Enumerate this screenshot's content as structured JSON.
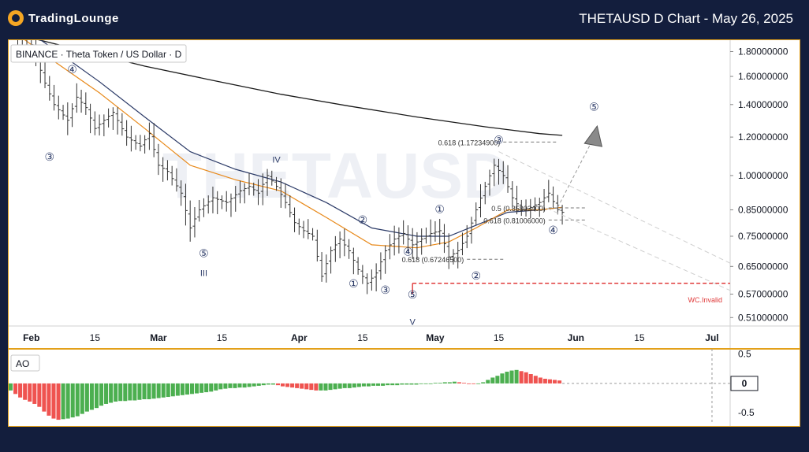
{
  "header": {
    "logo_text": "TradingLounge",
    "title": "THETAUSD D Chart - May 26, 2025"
  },
  "symbol_label": "BINANCE · Theta Token / US Dollar · D",
  "watermark": "THETAUSD",
  "indicator_label": "AO",
  "colors": {
    "background": "#131e3d",
    "frame": "#e3a019",
    "ema_fast": "#e8891a",
    "ema_mid": "#2b3a67",
    "ma_long": "#1a1a1a",
    "invalid": "#e03a3a",
    "ao_up": "#4caf50",
    "ao_down": "#ef5350"
  },
  "chart_data": {
    "type": "ohlc",
    "title": "THETAUSD D Chart - May 26, 2025",
    "y_axis_labels": [
      "1.80000000",
      "1.60000000",
      "1.40000000",
      "1.20000000",
      "1.00000000",
      "0.85000000",
      "0.75000000",
      "0.65000000",
      "0.57000000",
      "0.51000000"
    ],
    "y_axis_values": [
      1.8,
      1.6,
      1.4,
      1.2,
      1.0,
      0.85,
      0.75,
      0.65,
      0.57,
      0.51
    ],
    "scale": "log",
    "ylim": [
      0.49,
      1.9
    ],
    "x_axis_labels": [
      "Feb",
      "15",
      "Mar",
      "15",
      "Apr",
      "15",
      "May",
      "15",
      "Jun",
      "15",
      "Jul"
    ],
    "x_axis_days": [
      0,
      14,
      28,
      42,
      59,
      73,
      89,
      103,
      120,
      134,
      150
    ],
    "xlim": [
      -5,
      154
    ],
    "price_path": [
      [
        -3,
        1.85
      ],
      [
        0,
        1.86
      ],
      [
        3,
        1.55
      ],
      [
        5,
        1.4
      ],
      [
        8,
        1.3
      ],
      [
        10,
        1.45
      ],
      [
        12,
        1.38
      ],
      [
        14,
        1.25
      ],
      [
        16,
        1.3
      ],
      [
        18,
        1.35
      ],
      [
        21,
        1.2
      ],
      [
        24,
        1.15
      ],
      [
        26,
        1.22
      ],
      [
        28,
        1.05
      ],
      [
        30,
        1.02
      ],
      [
        33,
        0.92
      ],
      [
        35,
        0.78
      ],
      [
        37,
        0.85
      ],
      [
        40,
        0.9
      ],
      [
        43,
        0.88
      ],
      [
        46,
        0.93
      ],
      [
        48,
        0.95
      ],
      [
        50,
        0.92
      ],
      [
        52,
        1.0
      ],
      [
        54,
        0.95
      ],
      [
        56,
        0.88
      ],
      [
        58,
        0.8
      ],
      [
        60,
        0.77
      ],
      [
        62,
        0.75
      ],
      [
        64,
        0.62
      ],
      [
        66,
        0.7
      ],
      [
        68,
        0.74
      ],
      [
        70,
        0.7
      ],
      [
        72,
        0.64
      ],
      [
        74,
        0.6
      ],
      [
        76,
        0.63
      ],
      [
        78,
        0.7
      ],
      [
        80,
        0.74
      ],
      [
        82,
        0.76
      ],
      [
        84,
        0.72
      ],
      [
        86,
        0.74
      ],
      [
        88,
        0.76
      ],
      [
        90,
        0.77
      ],
      [
        92,
        0.68
      ],
      [
        94,
        0.7
      ],
      [
        96,
        0.75
      ],
      [
        98,
        0.85
      ],
      [
        100,
        0.95
      ],
      [
        102,
        1.05
      ],
      [
        104,
        1.0
      ],
      [
        106,
        0.9
      ],
      [
        108,
        0.85
      ],
      [
        110,
        0.86
      ],
      [
        112,
        0.88
      ],
      [
        114,
        0.92
      ],
      [
        116,
        0.85
      ],
      [
        117,
        0.84
      ]
    ],
    "ema_fast": [
      [
        -3,
        1.95
      ],
      [
        5,
        1.72
      ],
      [
        15,
        1.48
      ],
      [
        25,
        1.25
      ],
      [
        35,
        1.05
      ],
      [
        45,
        0.98
      ],
      [
        55,
        0.93
      ],
      [
        65,
        0.82
      ],
      [
        75,
        0.72
      ],
      [
        85,
        0.71
      ],
      [
        92,
        0.73
      ],
      [
        98,
        0.78
      ],
      [
        105,
        0.85
      ],
      [
        112,
        0.85
      ],
      [
        117,
        0.86
      ]
    ],
    "ema_mid": [
      [
        -3,
        2.05
      ],
      [
        5,
        1.82
      ],
      [
        15,
        1.56
      ],
      [
        25,
        1.32
      ],
      [
        35,
        1.12
      ],
      [
        45,
        1.03
      ],
      [
        55,
        0.97
      ],
      [
        65,
        0.88
      ],
      [
        75,
        0.78
      ],
      [
        85,
        0.75
      ],
      [
        92,
        0.75
      ],
      [
        98,
        0.79
      ],
      [
        105,
        0.84
      ],
      [
        112,
        0.85
      ],
      [
        117,
        0.86
      ]
    ],
    "ma_long": [
      [
        -3,
        1.95
      ],
      [
        10,
        1.82
      ],
      [
        25,
        1.68
      ],
      [
        40,
        1.57
      ],
      [
        55,
        1.47
      ],
      [
        70,
        1.39
      ],
      [
        85,
        1.32
      ],
      [
        100,
        1.26
      ],
      [
        112,
        1.22
      ],
      [
        117,
        1.21
      ]
    ],
    "wave_labels": [
      {
        "text": "④",
        "x": 9,
        "y": 1.65
      },
      {
        "text": "③",
        "x": 4,
        "y": 1.09
      },
      {
        "text": "⑤",
        "x": 38,
        "y": 0.69
      },
      {
        "text": "III",
        "x": 38,
        "y": 0.63
      },
      {
        "text": "IV",
        "x": 54,
        "y": 1.08
      },
      {
        "text": "②",
        "x": 73,
        "y": 0.808
      },
      {
        "text": "①",
        "x": 71,
        "y": 0.597
      },
      {
        "text": "③",
        "x": 78,
        "y": 0.58
      },
      {
        "text": "④",
        "x": 83,
        "y": 0.695
      },
      {
        "text": "⑤",
        "x": 84,
        "y": 0.567
      },
      {
        "text": "V",
        "x": 84,
        "y": 0.5
      },
      {
        "text": "①",
        "x": 90,
        "y": 0.85
      },
      {
        "text": "②",
        "x": 98,
        "y": 0.62
      },
      {
        "text": "③",
        "x": 103,
        "y": 1.18
      },
      {
        "text": "④",
        "x": 115,
        "y": 0.77
      },
      {
        "text": "⑤",
        "x": 124,
        "y": 1.38
      }
    ],
    "fib_levels": [
      {
        "label": "0.618 (1.17234900)",
        "value": 1.172349,
        "x1": 104,
        "x2": 116
      },
      {
        "label": "0.5 (0.85802400)",
        "value": 0.858024,
        "x1": 114,
        "x2": 122
      },
      {
        "label": "0.618 (0.81006000)",
        "value": 0.81006,
        "x1": 114,
        "x2": 122
      },
      {
        "label": "0.618 (0.67246500)",
        "value": 0.672465,
        "x1": 96,
        "x2": 104
      }
    ],
    "invalidation": {
      "label": "WC.Invalid",
      "value": 0.6,
      "x1": 84,
      "x2": 154
    },
    "ao": {
      "label": "AO",
      "y_axis_labels": [
        "0.5",
        "0",
        "-0.5"
      ],
      "y_axis_values": [
        0.5,
        0,
        -0.5
      ],
      "current_value": "0",
      "ylim": [
        -0.7,
        0.55
      ],
      "values": [
        -0.12,
        -0.18,
        -0.24,
        -0.28,
        -0.31,
        -0.35,
        -0.4,
        -0.48,
        -0.55,
        -0.6,
        -0.62,
        -0.61,
        -0.6,
        -0.58,
        -0.56,
        -0.52,
        -0.48,
        -0.45,
        -0.42,
        -0.38,
        -0.35,
        -0.33,
        -0.31,
        -0.3,
        -0.3,
        -0.29,
        -0.29,
        -0.28,
        -0.27,
        -0.27,
        -0.26,
        -0.25,
        -0.24,
        -0.23,
        -0.22,
        -0.21,
        -0.2,
        -0.19,
        -0.18,
        -0.17,
        -0.16,
        -0.15,
        -0.14,
        -0.12,
        -0.1,
        -0.09,
        -0.08,
        -0.08,
        -0.07,
        -0.07,
        -0.06,
        -0.05,
        -0.04,
        -0.03,
        -0.02,
        -0.02,
        -0.03,
        -0.05,
        -0.06,
        -0.07,
        -0.08,
        -0.09,
        -0.1,
        -0.11,
        -0.12,
        -0.12,
        -0.12,
        -0.11,
        -0.1,
        -0.09,
        -0.08,
        -0.08,
        -0.07,
        -0.06,
        -0.05,
        -0.05,
        -0.04,
        -0.04,
        -0.04,
        -0.03,
        -0.03,
        -0.03,
        -0.02,
        -0.02,
        -0.02,
        -0.02,
        -0.01,
        -0.01,
        0,
        0.01,
        0.01,
        0.02,
        0.02,
        0.03,
        0.02,
        0.01,
        0.0,
        -0.01,
        -0.01,
        0.02,
        0.06,
        0.1,
        0.13,
        0.17,
        0.2,
        0.22,
        0.23,
        0.21,
        0.19,
        0.16,
        0.13,
        0.1,
        0.08,
        0.07,
        0.06,
        0.05
      ]
    }
  }
}
